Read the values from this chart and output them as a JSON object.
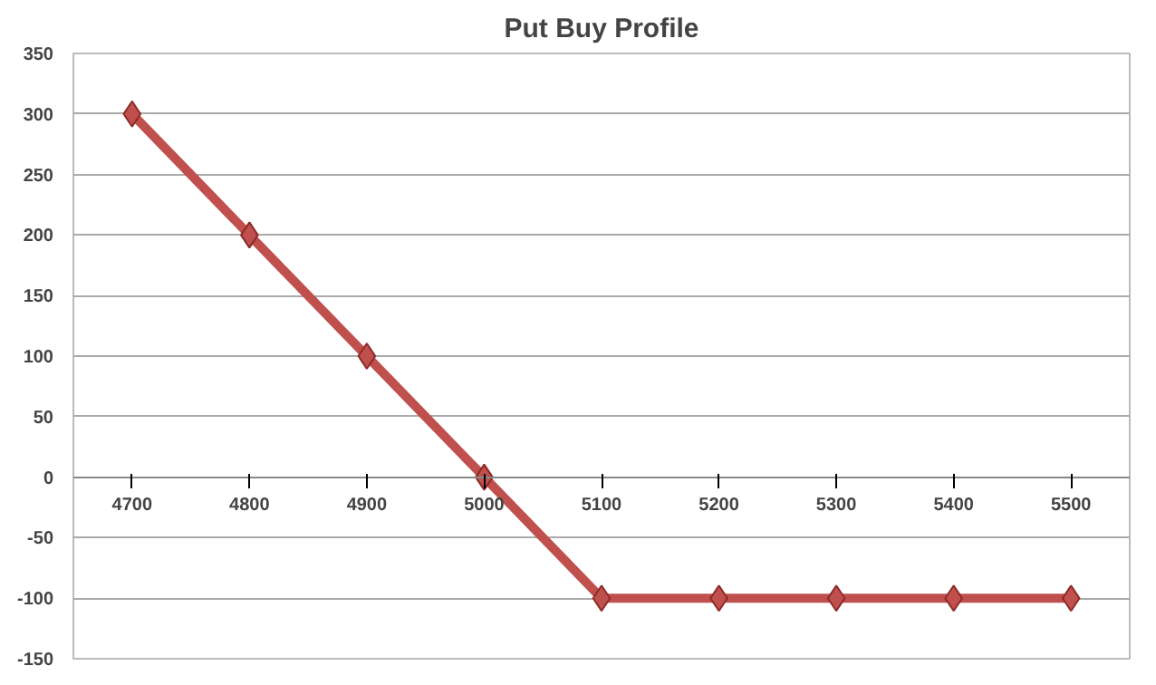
{
  "chart_data": {
    "type": "line",
    "title": "Put Buy Profile",
    "categories": [
      "4700",
      "4800",
      "4900",
      "5000",
      "5100",
      "5200",
      "5300",
      "5400",
      "5500"
    ],
    "series": [
      {
        "color": "#c0504d",
        "values": [
          300,
          200,
          100,
          0,
          -100,
          -100,
          -100,
          -100,
          -100
        ]
      }
    ],
    "ylim": [
      -150,
      350
    ],
    "yticks": [
      -150,
      -100,
      -50,
      0,
      50,
      100,
      150,
      200,
      250,
      300,
      350
    ],
    "grid": "y",
    "marker": "diamond",
    "line_style": "solid"
  }
}
